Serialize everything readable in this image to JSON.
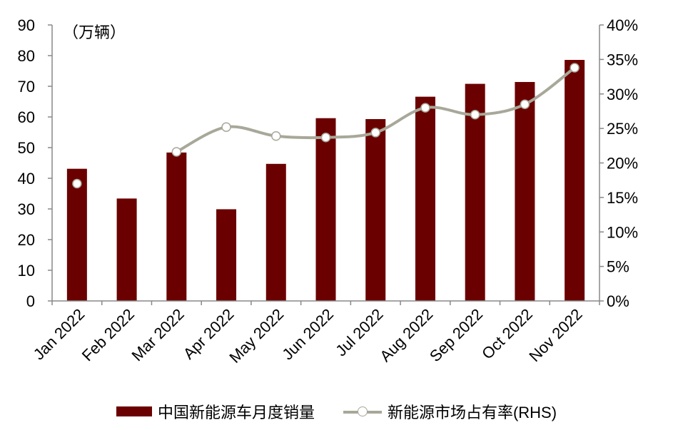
{
  "chart_data": {
    "type": "bar",
    "categories": [
      "Jan 2022",
      "Feb 2022",
      "Mar 2022",
      "Apr 2022",
      "May 2022",
      "Jun 2022",
      "Jul 2022",
      "Aug 2022",
      "Sep 2022",
      "Oct 2022",
      "Nov 2022"
    ],
    "unit_label": "（万辆）",
    "ylim": [
      0,
      90
    ],
    "yticks": [
      "0",
      "10",
      "20",
      "30",
      "40",
      "50",
      "60",
      "70",
      "80",
      "90"
    ],
    "y2lim": [
      0,
      0.4
    ],
    "y2ticks": [
      "0%",
      "5%",
      "10%",
      "15%",
      "20%",
      "25%",
      "30%",
      "35%",
      "40%"
    ],
    "grid": false,
    "legend_position": "bottom",
    "series": [
      {
        "name": "中国新能源车月度销量",
        "type": "bar",
        "axis": "left",
        "color": "#6b0000",
        "values": [
          43.1,
          33.4,
          48.4,
          29.9,
          44.7,
          59.6,
          59.3,
          66.6,
          70.8,
          71.4,
          78.6
        ]
      },
      {
        "name": "新能源市场占有率(RHS)",
        "type": "line",
        "axis": "right",
        "color": "#a8a89a",
        "values": [
          0.17,
          null,
          0.216,
          0.252,
          0.239,
          0.237,
          0.244,
          0.28,
          0.27,
          0.285,
          0.338
        ]
      }
    ]
  }
}
